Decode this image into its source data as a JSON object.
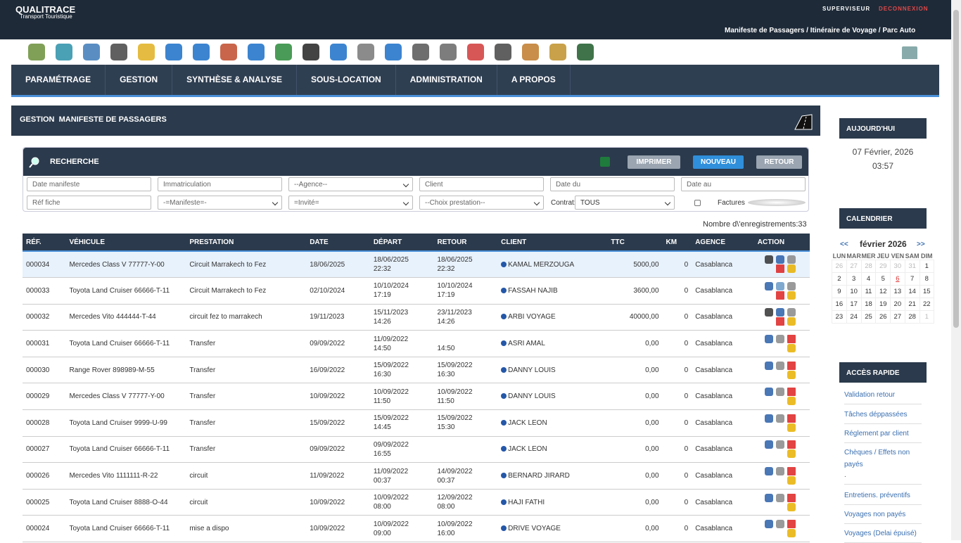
{
  "header": {
    "brand": "QUALITRACE",
    "tagline": "Transport Touristique",
    "user": "SUPERVISEUR",
    "logout": "DECONNEXION",
    "breadcrumb": "Manifeste de Passagers / Itinéraire de Voyage / Parc Auto"
  },
  "nav": [
    "PARAMÉTRAGE",
    "GESTION",
    "SYNTHÈSE & ANALYSE",
    "SOUS-LOCATION",
    "ADMINISTRATION",
    "A PROPOS"
  ],
  "panel": {
    "title": "GESTION  MANIFESTE DE PASSAGERS"
  },
  "search": {
    "title": "RECHERCHE",
    "buttons": [
      "IMPRIMER",
      "NOUVEAU",
      "RETOUR"
    ],
    "row1": [
      "Date manifeste",
      "Immatriculation",
      "--Agence--",
      "Client",
      "Date du",
      "Date au"
    ],
    "row2": [
      "Réf fiche",
      "-=Manifeste=-",
      "=Invité=",
      "--Choix prestation--"
    ],
    "contrat_label": "Contrat:",
    "contrat_value": "TOUS",
    "factures": "Factures"
  },
  "count": "Nombre d\\'enregistrements:33",
  "table": {
    "columns": [
      "RÉF.",
      "VÉHICULE",
      "PRESTATION",
      "DATE",
      "DÉPART",
      "RETOUR",
      "CLIENT",
      "TTC",
      "KM",
      "AGENCE",
      "ACTION"
    ],
    "rows": [
      [
        "000034",
        "Mercedes Class V 77777-Y-00",
        "Circuit Marrakech to Fez",
        "18/06/2025",
        "18/06/2025",
        "22:32",
        "18/06/2025",
        "22:32",
        "KAMAL MERZOUGA",
        "5000,00",
        "0",
        "Casablanca"
      ],
      [
        "000033",
        "Toyota Land Cruiser 66666-T-11",
        "Circuit Marrakech to Fez",
        "02/10/2024",
        "10/10/2024",
        "17:19",
        "10/10/2024",
        "17:19",
        "FASSAH NAJIB",
        "3600,00",
        "0",
        "Casablanca"
      ],
      [
        "000032",
        "Mercedes Vito 444444-T-44",
        "circuit fez to marrakech",
        "19/11/2023",
        "15/11/2023",
        "14:26",
        "23/11/2023",
        "14:26",
        "ARBI VOYAGE",
        "40000,00",
        "0",
        "Casablanca"
      ],
      [
        "000031",
        "Toyota Land Cruiser 66666-T-11",
        "Transfer",
        "09/09/2022",
        "11/09/2022",
        "14:50",
        null,
        "14:50",
        "ASRI AMAL",
        "0,00",
        "0",
        "Casablanca"
      ],
      [
        "000030",
        "Range Rover 898989-M-55",
        "Transfer",
        "16/09/2022",
        "15/09/2022",
        "16:30",
        "15/09/2022",
        "16:30",
        "DANNY LOUIS",
        "0,00",
        "0",
        "Casablanca"
      ],
      [
        "000029",
        "Mercedes Class V 77777-Y-00",
        "Transfer",
        "10/09/2022",
        "10/09/2022",
        "11:50",
        "10/09/2022",
        "11:50",
        "DANNY LOUIS",
        "0,00",
        "0",
        "Casablanca"
      ],
      [
        "000028",
        "Toyota Land Cruiser 9999-U-99",
        "Transfer",
        "15/09/2022",
        "15/09/2022",
        "14:45",
        "15/09/2022",
        "15:30",
        "JACK LEON",
        "0,00",
        "0",
        "Casablanca"
      ],
      [
        "000027",
        "Toyota Land Cruiser 66666-T-11",
        "Transfer",
        "09/09/2022",
        "09/09/2022",
        "16:55",
        null,
        null,
        "JACK LEON",
        "0,00",
        "0",
        "Casablanca"
      ],
      [
        "000026",
        "Mercedes Vito 1111111-R-22",
        "circuit",
        "11/09/2022",
        "11/09/2022",
        "00:37",
        "14/09/2022",
        "00:37",
        "BERNARD JIRARD",
        "0,00",
        "0",
        "Casablanca"
      ],
      [
        "000025",
        "Toyota Land Cruiser 8888-O-44",
        "circuit",
        "10/09/2022",
        "10/09/2022",
        "08:00",
        "12/09/2022",
        "08:00",
        "HAJI FATHI",
        "0,00",
        "0",
        "Casablanca"
      ],
      [
        "000024",
        "Toyota Land Cruiser 66666-T-11",
        "mise a dispo",
        "10/09/2022",
        "10/09/2022",
        "09:00",
        "10/09/2022",
        "16:00",
        "DRIVE VOYAGE",
        "0,00",
        "0",
        "Casablanca"
      ]
    ]
  },
  "today": {
    "title": "AUJOURD'HUI",
    "date": "07 Février, 2026",
    "time": "03:57"
  },
  "calendar": {
    "title": "CALENDRIER",
    "prev": "<<",
    "month": "février 2026",
    "next": ">>",
    "weekdays": [
      "LUN",
      "MAR",
      "MER",
      "JEU",
      "VEN",
      "SAM",
      "DIM"
    ],
    "weeks": [
      [
        26,
        27,
        28,
        29,
        30,
        31,
        1
      ],
      [
        2,
        3,
        4,
        5,
        6,
        7,
        8
      ],
      [
        9,
        10,
        11,
        12,
        13,
        14,
        15
      ],
      [
        16,
        17,
        18,
        19,
        20,
        21,
        22
      ],
      [
        23,
        24,
        25,
        26,
        27,
        28,
        1
      ]
    ]
  },
  "quick": {
    "title": "ACCÈS RAPIDE",
    "links": [
      "Validation retour",
      "Tâches déppassées",
      "Réglement par client",
      "Chèques / Effets non payés",
      ".",
      "Entretiens. préventifs",
      "Voyages non payés",
      "Voyages (Delai épuisé)"
    ]
  }
}
